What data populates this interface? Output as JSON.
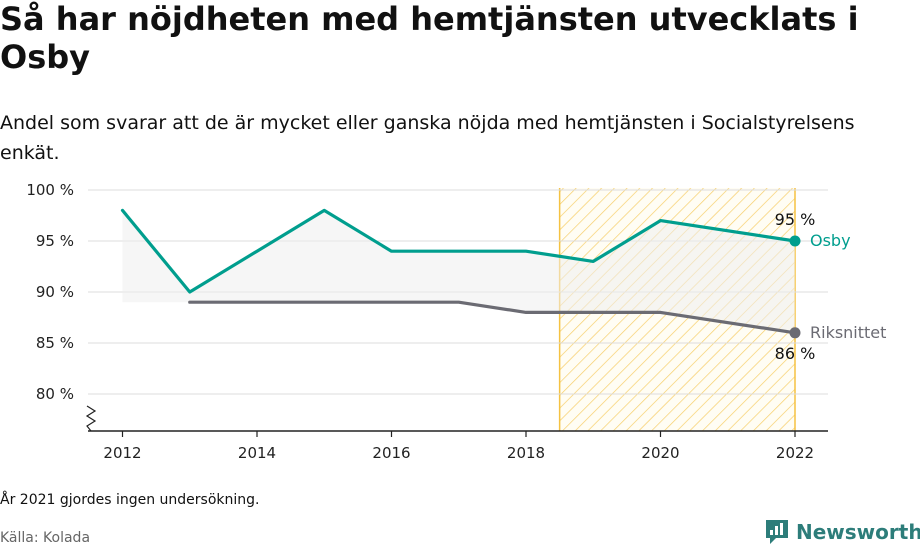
{
  "title": "Så har nöjdheten med hemtjänsten utvecklats i Osby",
  "subtitle": "Andel som svarar att de är mycket eller ganska nöjda med hemtjänsten i Socialstyrelsens enkät.",
  "footnote": "År 2021 gjordes ingen undersökning.",
  "source": "Källa: Kolada",
  "brand": {
    "name": "Newsworthy",
    "icon": "newsworthy-logo-icon",
    "color": "#2d7d7a"
  },
  "chart_data": {
    "type": "line",
    "x": [
      2012,
      2013,
      2014,
      2015,
      2016,
      2017,
      2018,
      2019,
      2020,
      2022
    ],
    "series": [
      {
        "name": "Osby",
        "values": [
          98,
          90,
          94,
          98,
          94,
          94,
          94,
          93,
          97,
          95
        ],
        "color": "#009e8e",
        "end_label": "95 %"
      },
      {
        "name": "Riksnittet",
        "values": [
          null,
          89,
          89,
          89,
          89,
          89,
          88,
          88,
          88,
          86
        ],
        "color": "#6b6b73",
        "end_label": "86 %"
      }
    ],
    "y_ticks": [
      80,
      85,
      90,
      95,
      100
    ],
    "y_tick_labels": [
      "80 %",
      "85 %",
      "90 %",
      "95 %",
      "100 %"
    ],
    "x_ticks": [
      2012,
      2014,
      2016,
      2018,
      2020,
      2022
    ],
    "x_tick_labels": [
      "2012",
      "2014",
      "2016",
      "2018",
      "2020",
      "2022"
    ],
    "ylim": [
      77,
      100
    ],
    "xlim": [
      2011.6,
      2022.5
    ],
    "axis_break": true,
    "highlight_range": [
      2018.5,
      2022
    ],
    "highlight_color": "#f5c242",
    "grid": true
  }
}
